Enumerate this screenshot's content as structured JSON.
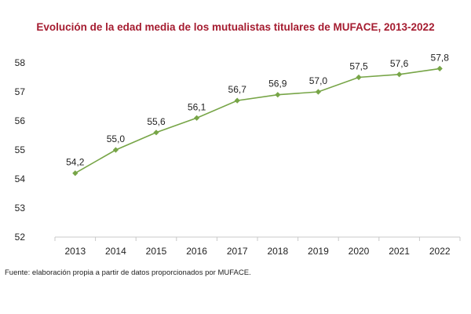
{
  "chart_data": {
    "type": "line",
    "title": "Evolución de la edad media de los mutualistas titulares de MUFACE, 2013-2022",
    "xlabel": "",
    "ylabel": "",
    "categories": [
      "2013",
      "2014",
      "2015",
      "2016",
      "2017",
      "2018",
      "2019",
      "2020",
      "2021",
      "2022"
    ],
    "series": [
      {
        "values": [
          54.2,
          55.0,
          55.6,
          56.1,
          56.7,
          56.9,
          57.0,
          57.5,
          57.6,
          57.8
        ],
        "data_labels": [
          "54,2",
          "55,0",
          "55,6",
          "56,1",
          "56,7",
          "56,9",
          "57,0",
          "57,5",
          "57,6",
          "57,8"
        ]
      }
    ],
    "ylim": [
      52,
      58
    ],
    "yticks": [
      "52",
      "53",
      "54",
      "55",
      "56",
      "57",
      "58"
    ],
    "grid": false,
    "line_color": "#77a547",
    "marker": "diamond"
  },
  "source_note": "Fuente: elaboración propia a partir de datos proporcionados por MUFACE."
}
